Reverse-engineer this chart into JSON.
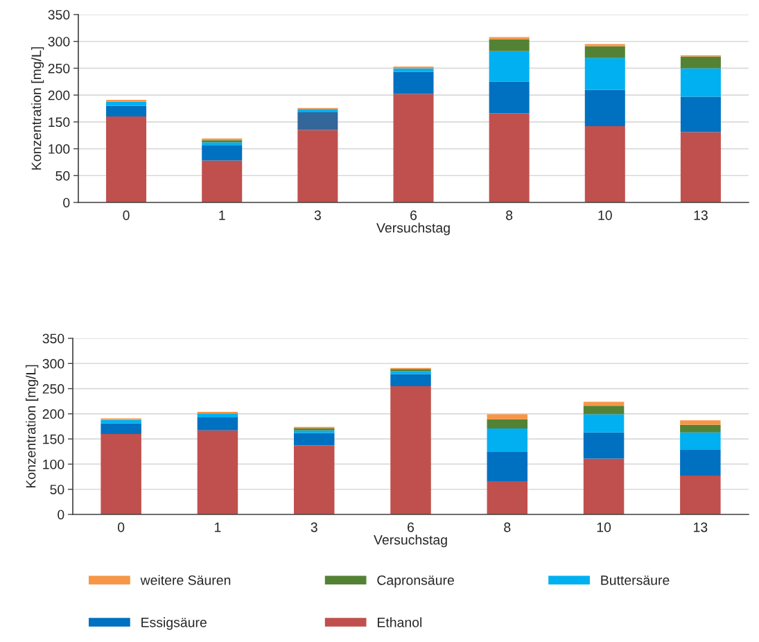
{
  "chart_data": [
    {
      "type": "bar",
      "stacked": true,
      "xlabel": "Versuchstag",
      "ylabel": "Konzentration [mg/L]",
      "categories": [
        "0",
        "1",
        "3",
        "6",
        "8",
        "10",
        "13"
      ],
      "ylim": [
        0,
        350
      ],
      "yticks": [
        0,
        50,
        100,
        150,
        200,
        250,
        300,
        350
      ],
      "grid": "y",
      "legend": "bottom",
      "series": [
        {
          "name": "Ethanol",
          "color": "#c0504d",
          "values": [
            160,
            78,
            135,
            202,
            166,
            142,
            131
          ]
        },
        {
          "name": "Essigsäure",
          "color": "#0070c0",
          "colors": [
            "#0070c0",
            "#0070c0",
            "#336699",
            "#0070c0",
            "#0070c0",
            "#0070c0",
            "#0070c0"
          ],
          "values": [
            20,
            29,
            33,
            41,
            59,
            68,
            66
          ]
        },
        {
          "name": "Buttersäure",
          "color": "#00b0f0",
          "values": [
            8,
            5,
            6,
            7,
            57,
            59,
            53
          ]
        },
        {
          "name": "Capronsäure",
          "color": "#548235",
          "values": [
            null,
            4,
            0,
            null,
            22,
            22,
            22
          ]
        },
        {
          "name": "weitere Säuren",
          "color": "#f79646",
          "values": [
            3,
            3,
            2,
            3,
            4,
            4,
            2
          ]
        }
      ]
    },
    {
      "type": "bar",
      "stacked": true,
      "xlabel": "Versuchstag",
      "ylabel": "Konzentration [mg/L]",
      "categories": [
        "0",
        "1",
        "3",
        "6",
        "8",
        "10",
        "13"
      ],
      "ylim": [
        0,
        350
      ],
      "yticks": [
        0,
        50,
        100,
        150,
        200,
        250,
        300,
        350
      ],
      "grid": "y",
      "series": [
        {
          "color": "#c0504d",
          "values": [
            160,
            167,
            137,
            255,
            66,
            111,
            77
          ]
        },
        {
          "color": "#0070c0",
          "values": [
            21,
            26,
            25,
            24,
            58,
            52,
            51
          ]
        },
        {
          "color": "#00b0f0",
          "values": [
            7,
            8,
            5,
            6,
            47,
            36,
            35
          ]
        },
        {
          "color": "#548235",
          "values": [
            0,
            null,
            4,
            4,
            18,
            17,
            15
          ]
        },
        {
          "color": "#f79646",
          "values": [
            3,
            3,
            3,
            2,
            10,
            8,
            9
          ]
        }
      ]
    }
  ]
}
